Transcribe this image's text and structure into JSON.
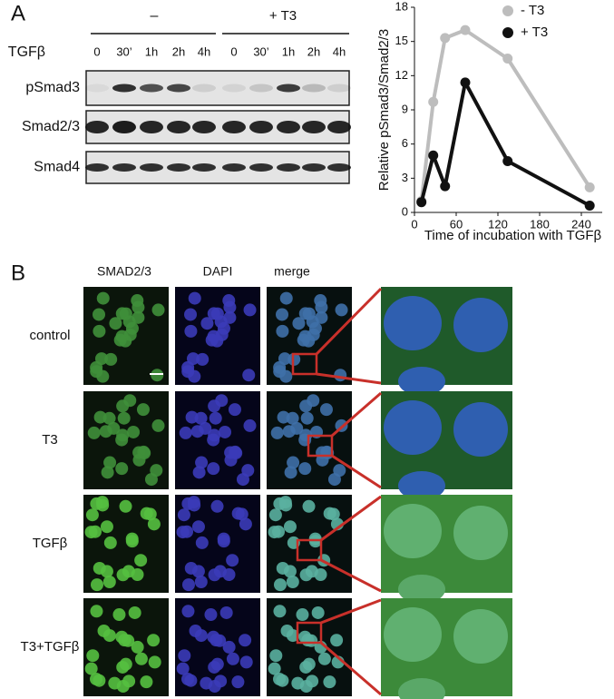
{
  "panel_a": {
    "label": "A",
    "blot": {
      "groups": [
        "–",
        "+ T3"
      ],
      "treatment": "TGFβ",
      "timepoints": [
        "0",
        "30’",
        "1h",
        "2h",
        "4h",
        "0",
        "30’",
        "1h",
        "2h",
        "4h"
      ],
      "rows": [
        "pSmad3",
        "Smad2/3",
        "Smad4"
      ]
    }
  },
  "chart_data": {
    "type": "line",
    "y_label": "Relative pSmad3/Smad2/3",
    "x_label": "Time of incubation with TGFβ",
    "xlim": [
      0,
      270
    ],
    "xticks": [
      0,
      60,
      120,
      180,
      240
    ],
    "ylim": [
      0,
      18
    ],
    "yticks": [
      0,
      3,
      6,
      9,
      12,
      15,
      18
    ],
    "legend": "upper right",
    "series": [
      {
        "name": "-  T3",
        "color": "#bdbdbd",
        "x": [
          10,
          27,
          44,
          73,
          134,
          252
        ],
        "values": [
          1.0,
          9.7,
          15.3,
          16.0,
          13.5,
          2.2
        ]
      },
      {
        "name": "+ T3",
        "color": "#111111",
        "x": [
          10,
          27,
          44,
          73,
          134,
          252
        ],
        "values": [
          0.9,
          5.0,
          2.3,
          11.4,
          4.5,
          0.6
        ]
      }
    ]
  },
  "panel_b": {
    "label": "B",
    "columns": [
      "SMAD2/3",
      "DAPI",
      "merge"
    ],
    "rows": [
      "control",
      "T3",
      "TGFβ",
      "T3+TGFβ"
    ]
  }
}
